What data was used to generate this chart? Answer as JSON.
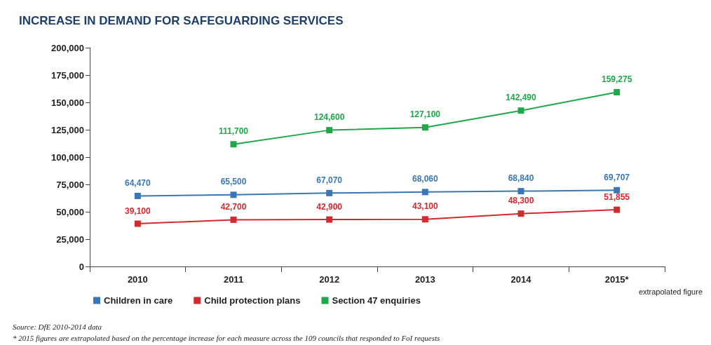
{
  "chart_data": {
    "type": "line",
    "title": "INCREASE IN DEMAND FOR SAFEGUARDING SERVICES",
    "categories": [
      "2010",
      "2011",
      "2012",
      "2013",
      "2014",
      "2015*"
    ],
    "series": [
      {
        "name": "Children in care",
        "color": "#3a78b5",
        "values": [
          64470,
          65500,
          67070,
          68060,
          68840,
          69707
        ],
        "value_labels": [
          "64,470",
          "65,500",
          "67,070",
          "68,060",
          "68,840",
          "69,707"
        ]
      },
      {
        "name": "Child protection plans",
        "color": "#d42a2f",
        "values": [
          39100,
          42700,
          42900,
          43100,
          48300,
          51855
        ],
        "value_labels": [
          "39,100",
          "42,700",
          "42,900",
          "43,100",
          "48,300",
          "51,855"
        ]
      },
      {
        "name": "Section 47 enquiries",
        "color": "#1fa84a",
        "values": [
          null,
          111700,
          124600,
          127100,
          142490,
          159275
        ],
        "value_labels": [
          null,
          "111,700",
          "124,600",
          "127,100",
          "142,490",
          "159,275"
        ]
      }
    ],
    "ylim": [
      0,
      200000
    ],
    "yticks": [
      0,
      {
        "value": 25000,
        "label": "25,000"
      },
      {
        "value": 50000,
        "label": "50,000"
      },
      {
        "value": 75000,
        "label": "75,000"
      },
      {
        "value": 100000,
        "label": "100,000"
      },
      {
        "value": 125000,
        "label": "125,000"
      },
      {
        "value": 150000,
        "label": "150,000"
      },
      {
        "value": 175000,
        "label": "175,000"
      },
      {
        "value": 200000,
        "label": "200,000"
      }
    ],
    "grid": false,
    "legend": "bottom",
    "marker": "square",
    "line_style": "solid",
    "annotations": [
      "extrapolated figure",
      "Source: DfE 2010-2014 data",
      "* 2015 figures are extrapolated based on the percentage increase for each measure across the 109 councils that responded to FoI requests"
    ]
  }
}
